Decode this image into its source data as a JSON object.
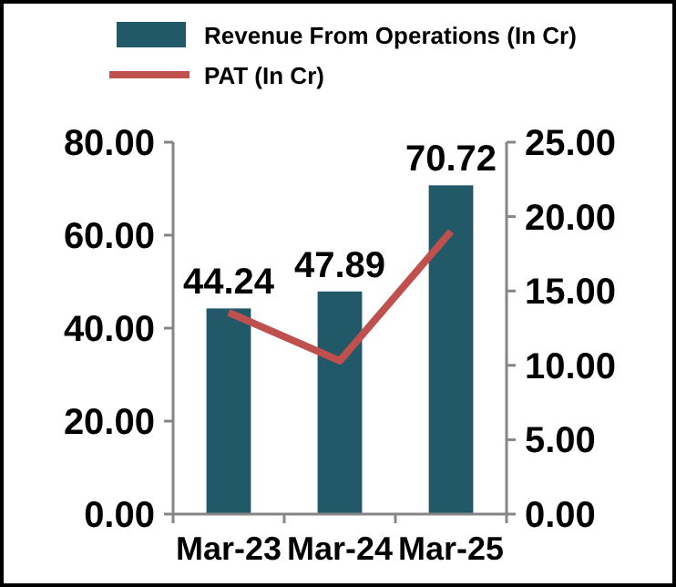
{
  "chart_data": {
    "type": "bar",
    "categories": [
      "Mar-23",
      "Mar-24",
      "Mar-25"
    ],
    "series": [
      {
        "name": "Revenue From Operations (In Cr)",
        "color": "#215968",
        "values": [
          44.24,
          47.89,
          70.72
        ],
        "value_labels": [
          "44.24",
          "47.89",
          "70.72"
        ]
      },
      {
        "name": "PAT (In Cr)",
        "type": "line",
        "axis": "y2",
        "color": "#c0504d",
        "values": [
          13.55,
          10.3,
          19.0
        ],
        "marker": "none"
      }
    ],
    "ylim": [
      0,
      80
    ],
    "yticks": [
      {
        "value": 0,
        "label": "0.00"
      },
      {
        "value": 20,
        "label": "20.00"
      },
      {
        "value": 40,
        "label": "40.00"
      },
      {
        "value": 60,
        "label": "60.00"
      },
      {
        "value": 80,
        "label": "80.00"
      }
    ],
    "y2lim": [
      0,
      25
    ],
    "y2ticks": [
      {
        "value": 0,
        "label": "0.00"
      },
      {
        "value": 5,
        "label": "5.00"
      },
      {
        "value": 10,
        "label": "10.00"
      },
      {
        "value": 15,
        "label": "15.00"
      },
      {
        "value": 20,
        "label": "20.00"
      },
      {
        "value": 25,
        "label": "25.00"
      }
    ],
    "legend": "top",
    "grid": false
  }
}
